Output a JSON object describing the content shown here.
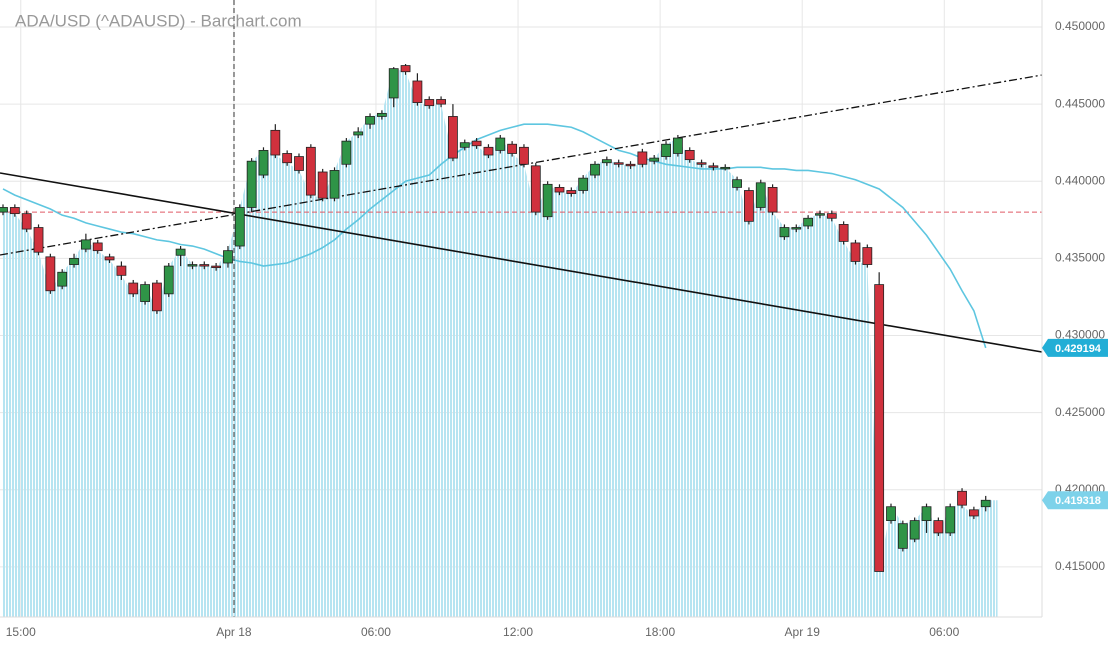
{
  "chart_data": {
    "type": "candlestick",
    "title": "ADA/USD (^ADAUSD) - Barchart.com",
    "categories": [
      null,
      null,
      "15:00",
      null,
      null,
      null,
      null,
      null,
      null,
      null,
      null,
      null,
      null,
      null,
      null,
      null,
      null,
      null,
      null,
      null,
      "Apr 18",
      null,
      null,
      null,
      null,
      null,
      null,
      null,
      null,
      null,
      null,
      null,
      "06:00",
      null,
      null,
      null,
      null,
      null,
      null,
      null,
      null,
      null,
      null,
      null,
      "12:00",
      null,
      null,
      null,
      null,
      null,
      null,
      null,
      null,
      null,
      null,
      null,
      "18:00",
      null,
      null,
      null,
      null,
      null,
      null,
      null,
      null,
      null,
      null,
      null,
      "Apr 19",
      null,
      null,
      null,
      null,
      null,
      null,
      null,
      null,
      null,
      null,
      null,
      "06:00",
      null,
      null,
      null
    ],
    "open": [
      0.438,
      0.4383,
      0.4379,
      0.437,
      0.4351,
      0.4332,
      0.4346,
      0.4356,
      0.436,
      0.4351,
      0.4345,
      0.4334,
      0.4322,
      0.4334,
      0.4327,
      0.4352,
      0.4345,
      0.4346,
      0.4345,
      0.4347,
      0.4358,
      0.4383,
      0.4404,
      0.4433,
      0.4418,
      0.4416,
      0.4422,
      0.4406,
      0.4389,
      0.4411,
      0.443,
      0.4437,
      0.4442,
      0.4454,
      0.4475,
      0.4465,
      0.4453,
      0.4453,
      0.4442,
      0.4422,
      0.4426,
      0.4422,
      0.442,
      0.4424,
      0.4422,
      0.441,
      0.4377,
      0.4396,
      0.4394,
      0.4394,
      0.4404,
      0.4412,
      0.4412,
      0.4411,
      0.4419,
      0.4413,
      0.4416,
      0.4418,
      0.442,
      0.4412,
      0.441,
      0.4409,
      0.4396,
      0.4394,
      0.4383,
      0.4396,
      0.4364,
      0.4369,
      0.4371,
      0.4378,
      0.4379,
      0.4372,
      0.436,
      0.4357,
      0.4333,
      0.418,
      0.4162,
      0.4168,
      0.418,
      0.418,
      0.4172,
      0.4199,
      0.4187,
      0.4189
    ],
    "high": [
      0.4385,
      0.4385,
      0.4381,
      0.4372,
      0.4353,
      0.4343,
      0.4353,
      0.4366,
      0.4362,
      0.4353,
      0.4348,
      0.4336,
      0.4335,
      0.4336,
      0.4347,
      0.4358,
      0.4348,
      0.4348,
      0.4347,
      0.4358,
      0.4385,
      0.4415,
      0.4422,
      0.4437,
      0.442,
      0.4418,
      0.4424,
      0.4408,
      0.4409,
      0.4428,
      0.4435,
      0.4444,
      0.4446,
      0.4474,
      0.4476,
      0.447,
      0.4455,
      0.4455,
      0.445,
      0.4427,
      0.4428,
      0.4424,
      0.443,
      0.4426,
      0.4424,
      0.4412,
      0.44,
      0.4398,
      0.4396,
      0.4404,
      0.4413,
      0.4416,
      0.4414,
      0.4413,
      0.4421,
      0.4417,
      0.4426,
      0.443,
      0.4422,
      0.4414,
      0.4412,
      0.4411,
      0.4403,
      0.4396,
      0.4401,
      0.4398,
      0.4372,
      0.4372,
      0.4378,
      0.4381,
      0.4381,
      0.4374,
      0.4362,
      0.4359,
      0.4341,
      0.4191,
      0.418,
      0.4182,
      0.4191,
      0.4182,
      0.4191,
      0.4201,
      0.4189,
      0.4196
    ],
    "low": [
      0.4378,
      0.4377,
      0.4367,
      0.4352,
      0.4327,
      0.433,
      0.4344,
      0.4354,
      0.4353,
      0.4347,
      0.4336,
      0.4325,
      0.432,
      0.4314,
      0.4325,
      0.4345,
      0.4343,
      0.4343,
      0.4342,
      0.4344,
      0.4356,
      0.438,
      0.4402,
      0.4415,
      0.441,
      0.4405,
      0.4389,
      0.4387,
      0.4387,
      0.4409,
      0.4428,
      0.4434,
      0.444,
      0.4448,
      0.4469,
      0.4449,
      0.4447,
      0.4448,
      0.4413,
      0.442,
      0.4421,
      0.4415,
      0.4418,
      0.4416,
      0.4409,
      0.4378,
      0.4375,
      0.4391,
      0.439,
      0.4392,
      0.4402,
      0.441,
      0.4409,
      0.4408,
      0.4409,
      0.4411,
      0.4414,
      0.4416,
      0.4412,
      0.4409,
      0.4407,
      0.4407,
      0.4394,
      0.4372,
      0.4381,
      0.4378,
      0.4362,
      0.4367,
      0.4369,
      0.4376,
      0.4374,
      0.4359,
      0.4346,
      0.4344,
      0.4147,
      0.4178,
      0.416,
      0.4166,
      0.4172,
      0.417,
      0.417,
      0.4188,
      0.4181,
      0.4186
    ],
    "close": [
      0.4383,
      0.4379,
      0.4369,
      0.4354,
      0.4329,
      0.4341,
      0.435,
      0.4362,
      0.4355,
      0.4349,
      0.4339,
      0.4327,
      0.4333,
      0.4316,
      0.4345,
      0.4356,
      0.4346,
      0.4345,
      0.4344,
      0.4355,
      0.4383,
      0.4413,
      0.442,
      0.4417,
      0.4412,
      0.4407,
      0.4391,
      0.4389,
      0.4407,
      0.4426,
      0.4432,
      0.4442,
      0.4444,
      0.4473,
      0.4471,
      0.4451,
      0.4449,
      0.445,
      0.4415,
      0.4425,
      0.4423,
      0.4417,
      0.4428,
      0.4418,
      0.4411,
      0.438,
      0.4398,
      0.4393,
      0.4392,
      0.4402,
      0.4411,
      0.4414,
      0.4411,
      0.441,
      0.4411,
      0.4415,
      0.4424,
      0.4428,
      0.4414,
      0.4411,
      0.4409,
      0.4409,
      0.4401,
      0.4374,
      0.4399,
      0.438,
      0.437,
      0.437,
      0.4376,
      0.4379,
      0.4376,
      0.4361,
      0.4348,
      0.4346,
      0.4147,
      0.4189,
      0.4178,
      0.418,
      0.4189,
      0.4172,
      0.4189,
      0.419,
      0.4183,
      0.419318
    ],
    "up_color": "#2f9447",
    "down_color": "#d0313d",
    "area_color": "#b6e4f1",
    "moving_average": {
      "color": "#5ec6e0",
      "values": [
        0.4395,
        0.4391,
        0.4388,
        0.4385,
        0.4382,
        0.4378,
        0.4376,
        0.4373,
        0.4371,
        0.4369,
        0.4367,
        0.4366,
        0.4364,
        0.4362,
        0.4361,
        0.4359,
        0.4358,
        0.4356,
        0.4353,
        0.435,
        0.4348,
        0.4347,
        0.4345,
        0.4346,
        0.4347,
        0.435,
        0.4353,
        0.4357,
        0.4362,
        0.4369,
        0.4375,
        0.4382,
        0.4388,
        0.4394,
        0.44,
        0.4402,
        0.4404,
        0.4411,
        0.4417,
        0.4422,
        0.4427,
        0.443,
        0.4433,
        0.4435,
        0.4437,
        0.4437,
        0.4437,
        0.4436,
        0.4435,
        0.4432,
        0.4428,
        0.4424,
        0.442,
        0.4418,
        0.4415,
        0.4413,
        0.4411,
        0.441,
        0.4409,
        0.4408,
        0.4408,
        0.4408,
        0.4409,
        0.4409,
        0.4409,
        0.4408,
        0.4408,
        0.4407,
        0.4407,
        0.4406,
        0.4405,
        0.4403,
        0.4401,
        0.4398,
        0.4395,
        0.4389,
        0.4383,
        0.4374,
        0.4365,
        0.4354,
        0.4343,
        0.4329,
        0.4316,
        0.429194
      ]
    },
    "reference_level": 0.438,
    "ylim": [
      0.41175,
      0.45175
    ],
    "yticks": [
      {
        "value": 0.415,
        "label": "0.415000"
      },
      {
        "value": 0.42,
        "label": "0.420000"
      },
      {
        "value": 0.425,
        "label": "0.425000"
      },
      {
        "value": 0.43,
        "label": "0.430000"
      },
      {
        "value": 0.435,
        "label": "0.435000"
      },
      {
        "value": 0.44,
        "label": "0.440000"
      },
      {
        "value": 0.445,
        "label": "0.445000"
      },
      {
        "value": 0.45,
        "label": "0.450000"
      }
    ],
    "grid": true
  }
}
